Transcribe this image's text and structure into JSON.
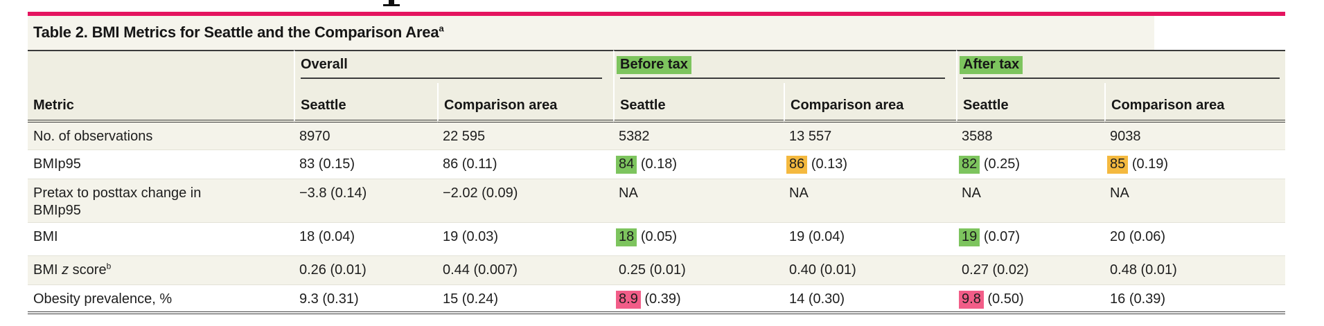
{
  "colors": {
    "accent_rule": "#e4145f",
    "green": "#7dc45e",
    "orange": "#f4b93f",
    "pink": "#f25d88",
    "header_bg": "#efeee2",
    "stripe_bg": "#f4f3ea"
  },
  "table": {
    "title": "Table 2. BMI Metrics for Seattle and the Comparison Area",
    "title_sup": "a",
    "metric_header": "Metric",
    "groups": [
      {
        "label": "Overall",
        "highlight": null
      },
      {
        "label": "Before tax",
        "highlight": "green"
      },
      {
        "label": "After tax",
        "highlight": "green"
      }
    ],
    "sub_headers": [
      "Seattle",
      "Comparison area",
      "Seattle",
      "Comparison area",
      "Seattle",
      "Comparison area"
    ],
    "rows": [
      {
        "metric": {
          "text": "No. of observations"
        },
        "cells": [
          {
            "text": "8970"
          },
          {
            "text": "22 595"
          },
          {
            "text": "5382"
          },
          {
            "text": "13 557"
          },
          {
            "text": "3588"
          },
          {
            "text": "9038"
          }
        ]
      },
      {
        "metric": {
          "text": "BMIp95"
        },
        "cells": [
          {
            "text": "83 (0.15)"
          },
          {
            "text": "86 (0.11)"
          },
          {
            "highlight": "green",
            "hl_text": "84",
            "text": " (0.18)"
          },
          {
            "highlight": "orange",
            "hl_text": "86",
            "text": " (0.13)"
          },
          {
            "highlight": "green",
            "hl_text": "82",
            "text": " (0.25)"
          },
          {
            "highlight": "orange",
            "hl_text": "85",
            "text": " (0.19)"
          }
        ]
      },
      {
        "metric": {
          "text": "Pretax to posttax change in",
          "line2": "BMIp95"
        },
        "cells": [
          {
            "text": "−3.8 (0.14)"
          },
          {
            "text": "−2.02 (0.09)"
          },
          {
            "text": "NA"
          },
          {
            "text": "NA"
          },
          {
            "text": "NA"
          },
          {
            "text": "NA"
          }
        ]
      },
      {
        "metric": {
          "text": "BMI"
        },
        "cells": [
          {
            "text": "18 (0.04)"
          },
          {
            "text": "19 (0.03)"
          },
          {
            "highlight": "green",
            "hl_text": "18",
            "text": " (0.05)"
          },
          {
            "text": "19 (0.04)"
          },
          {
            "highlight": "green",
            "hl_text": "19",
            "text": " (0.07)"
          },
          {
            "text": "20 (0.06)"
          }
        ]
      },
      {
        "metric": {
          "text": "BMI ",
          "italic": "z",
          "post": " score",
          "sup": "b"
        },
        "cells": [
          {
            "text": "0.26 (0.01)"
          },
          {
            "text": "0.44 (0.007)"
          },
          {
            "text": "0.25 (0.01)"
          },
          {
            "text": "0.40 (0.01)"
          },
          {
            "text": "0.27 (0.02)"
          },
          {
            "text": "0.48 (0.01)"
          }
        ]
      },
      {
        "metric": {
          "text": "Obesity prevalence, %"
        },
        "cells": [
          {
            "text": "9.3 (0.31)"
          },
          {
            "text": "15 (0.24)"
          },
          {
            "highlight": "pink",
            "hl_text": "8.9",
            "text": " (0.39)"
          },
          {
            "text": "14 (0.30)"
          },
          {
            "highlight": "pink",
            "hl_text": "9.8",
            "text": " (0.50)"
          },
          {
            "text": "16 (0.39)"
          }
        ]
      }
    ]
  }
}
